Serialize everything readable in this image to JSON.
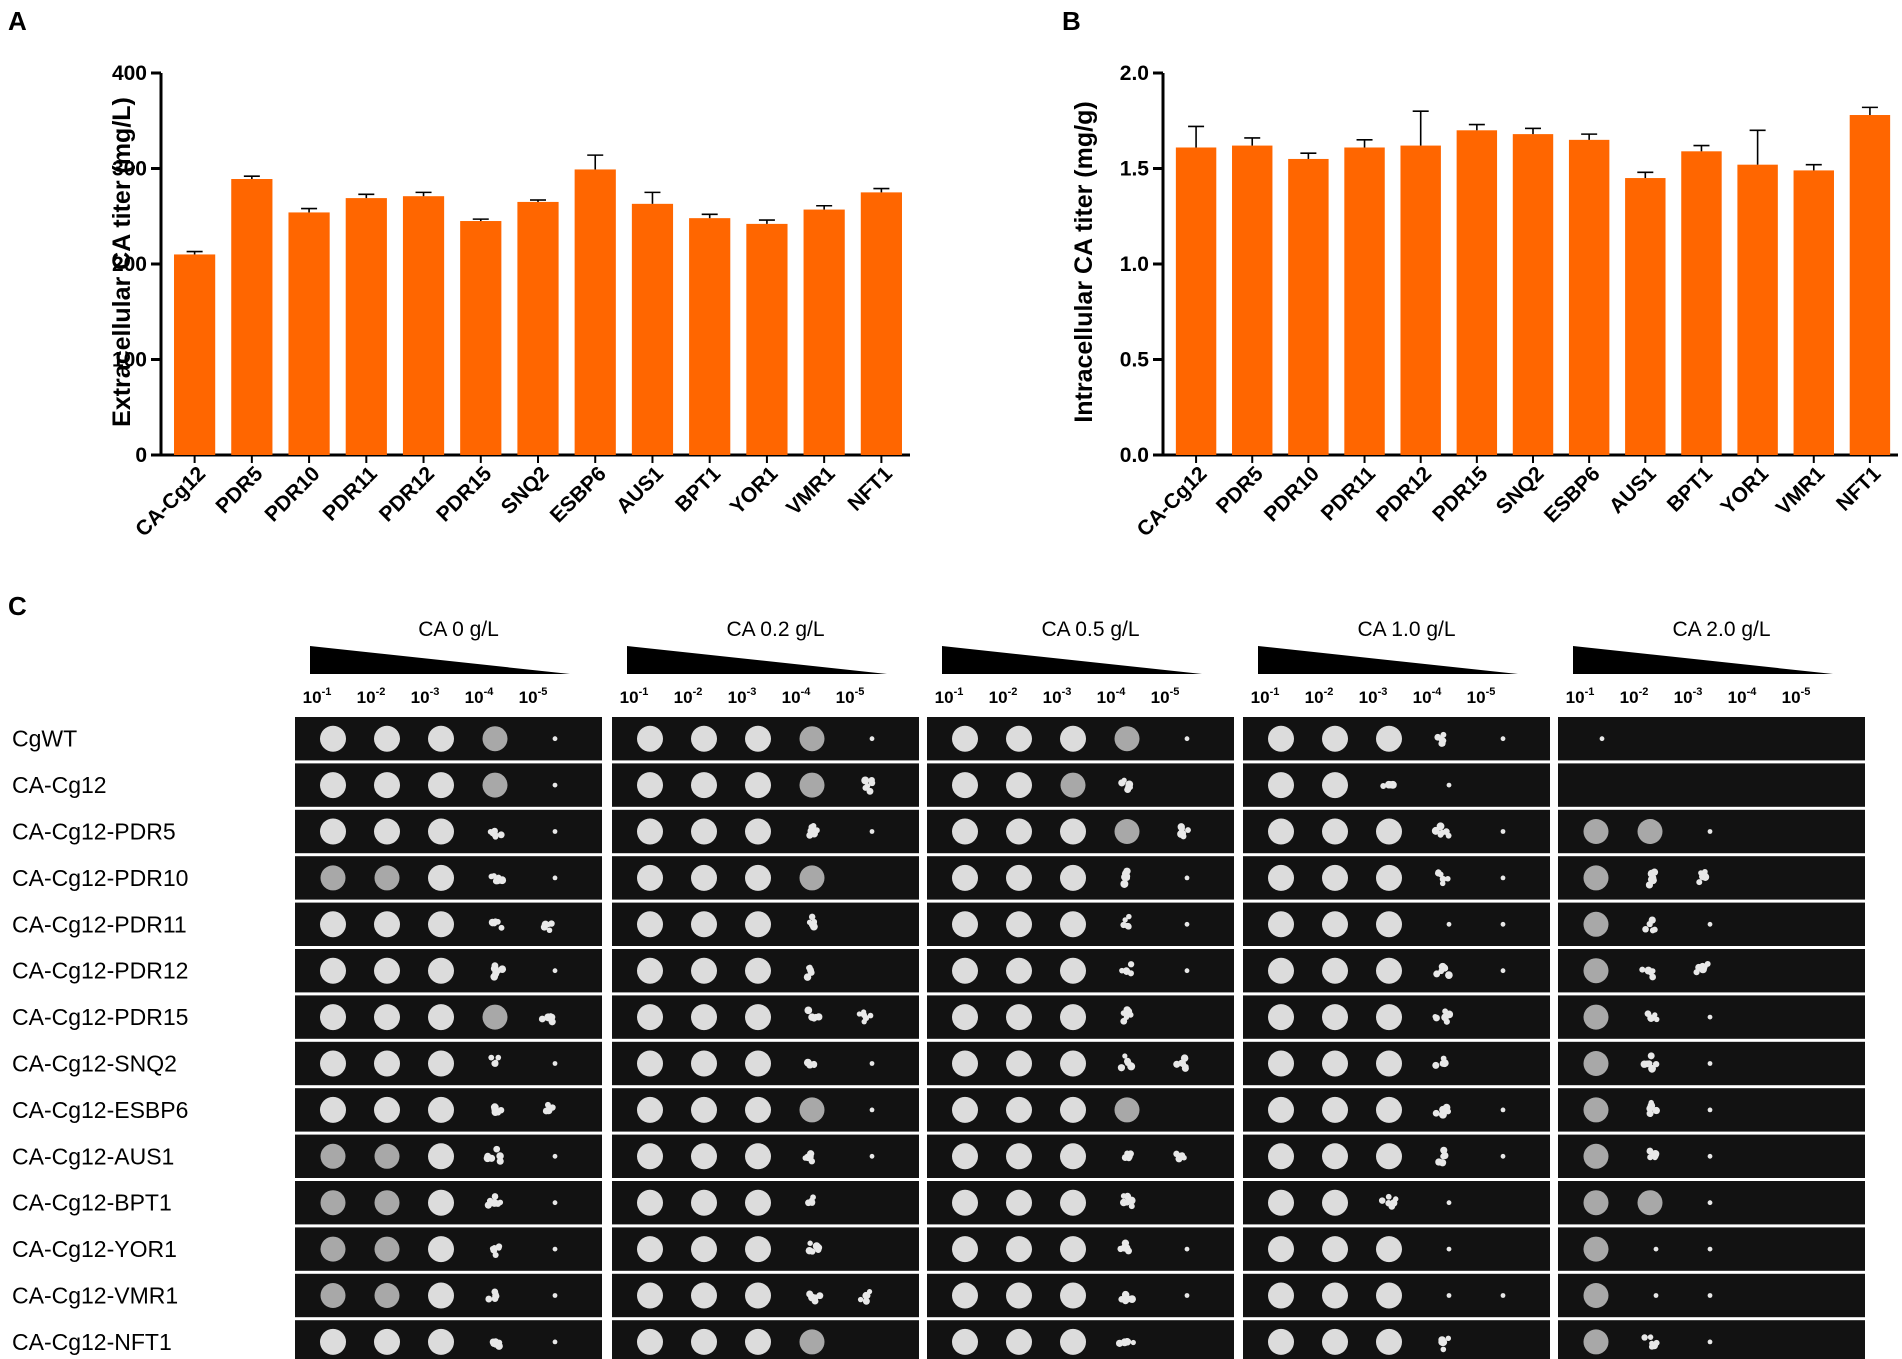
{
  "panel_labels": {
    "a": "A",
    "b": "B",
    "c": "C"
  },
  "colors": {
    "bar": "#FF6600",
    "axis": "#000000",
    "plate": "#121212",
    "colony": "#e8e8e8"
  },
  "chart_data": [
    {
      "type": "bar",
      "panel": "A",
      "title": "",
      "xlabel": "",
      "ylabel": "Extracellular CA titer (mg/L)",
      "ylim": [
        0,
        400
      ],
      "yticks": [
        0,
        100,
        200,
        300,
        400
      ],
      "ytick_labels": [
        "0",
        "100",
        "200",
        "300",
        "400"
      ],
      "categories": [
        "CA-Cg12",
        "PDR5",
        "PDR10",
        "PDR11",
        "PDR12",
        "PDR15",
        "SNQ2",
        "ESBP6",
        "AUS1",
        "BPT1",
        "YOR1",
        "VMR1",
        "NFT1"
      ],
      "values": [
        210,
        289,
        254,
        269,
        271,
        245,
        265,
        299,
        263,
        248,
        242,
        257,
        275
      ],
      "errors": [
        3,
        3,
        4,
        4,
        4,
        2,
        2,
        15,
        12,
        4,
        4,
        4,
        4
      ]
    },
    {
      "type": "bar",
      "panel": "B",
      "title": "",
      "xlabel": "",
      "ylabel": "Intracellular CA titer (mg/g)",
      "ylim": [
        0,
        2.0
      ],
      "yticks": [
        0,
        0.5,
        1.0,
        1.5,
        2.0
      ],
      "ytick_labels": [
        "0.0",
        "0.5",
        "1.0",
        "1.5",
        "2.0"
      ],
      "categories": [
        "CA-Cg12",
        "PDR5",
        "PDR10",
        "PDR11",
        "PDR12",
        "PDR15",
        "SNQ2",
        "ESBP6",
        "AUS1",
        "BPT1",
        "YOR1",
        "VMR1",
        "NFT1"
      ],
      "values": [
        1.61,
        1.62,
        1.55,
        1.61,
        1.62,
        1.7,
        1.68,
        1.65,
        1.45,
        1.59,
        1.52,
        1.49,
        1.78
      ],
      "errors": [
        0.11,
        0.04,
        0.03,
        0.04,
        0.18,
        0.03,
        0.03,
        0.03,
        0.03,
        0.03,
        0.18,
        0.03,
        0.04
      ]
    }
  ],
  "spot_assay": {
    "conditions": [
      "CA 0 g/L",
      "CA 0.2 g/L",
      "CA 0.5 g/L",
      "CA 1.0 g/L",
      "CA 2.0 g/L"
    ],
    "dilution_base": "10",
    "dilution_exponents": [
      "-1",
      "-2",
      "-3",
      "-4",
      "-5"
    ],
    "strains": [
      "CgWT",
      "CA-Cg12",
      "CA-Cg12-PDR5",
      "CA-Cg12-PDR10",
      "CA-Cg12-PDR11",
      "CA-Cg12-PDR12",
      "CA-Cg12-PDR15",
      "CA-Cg12-SNQ2",
      "CA-Cg12-ESBP6",
      "CA-Cg12-AUS1",
      "CA-Cg12-BPT1",
      "CA-Cg12-YOR1",
      "CA-Cg12-VMR1",
      "CA-Cg12-NFT1"
    ],
    "growth_levels": [
      [
        [
          4,
          4,
          4,
          3,
          1
        ],
        [
          4,
          4,
          4,
          3,
          1
        ],
        [
          4,
          4,
          4,
          3,
          1
        ],
        [
          4,
          4,
          4,
          2,
          1
        ],
        [
          1,
          0,
          0,
          0,
          0
        ]
      ],
      [
        [
          4,
          4,
          4,
          3,
          1
        ],
        [
          4,
          4,
          4,
          3,
          2
        ],
        [
          4,
          4,
          3,
          2,
          0
        ],
        [
          4,
          4,
          2,
          1,
          0
        ],
        [
          0,
          0,
          0,
          0,
          0
        ]
      ],
      [
        [
          4,
          4,
          4,
          2,
          1
        ],
        [
          4,
          4,
          4,
          2,
          1
        ],
        [
          4,
          4,
          4,
          3,
          2
        ],
        [
          4,
          4,
          4,
          2,
          1
        ],
        [
          3,
          3,
          1,
          0,
          0
        ]
      ],
      [
        [
          3,
          3,
          4,
          2,
          1
        ],
        [
          4,
          4,
          4,
          3,
          0
        ],
        [
          4,
          4,
          4,
          2,
          1
        ],
        [
          4,
          4,
          4,
          2,
          1
        ],
        [
          3,
          2,
          2,
          0,
          0
        ]
      ],
      [
        [
          4,
          4,
          4,
          2,
          2
        ],
        [
          4,
          4,
          4,
          2,
          0
        ],
        [
          4,
          4,
          4,
          2,
          1
        ],
        [
          4,
          4,
          4,
          1,
          1
        ],
        [
          3,
          2,
          1,
          0,
          0
        ]
      ],
      [
        [
          4,
          4,
          4,
          2,
          1
        ],
        [
          4,
          4,
          4,
          2,
          0
        ],
        [
          4,
          4,
          4,
          2,
          1
        ],
        [
          4,
          4,
          4,
          2,
          1
        ],
        [
          3,
          2,
          2,
          0,
          0
        ]
      ],
      [
        [
          4,
          4,
          4,
          3,
          2
        ],
        [
          4,
          4,
          4,
          2,
          2
        ],
        [
          4,
          4,
          4,
          2,
          0
        ],
        [
          4,
          4,
          4,
          2,
          0
        ],
        [
          3,
          2,
          1,
          0,
          0
        ]
      ],
      [
        [
          4,
          4,
          4,
          2,
          1
        ],
        [
          4,
          4,
          4,
          2,
          1
        ],
        [
          4,
          4,
          4,
          2,
          2
        ],
        [
          4,
          4,
          4,
          2,
          0
        ],
        [
          3,
          2,
          1,
          0,
          0
        ]
      ],
      [
        [
          4,
          4,
          4,
          2,
          2
        ],
        [
          4,
          4,
          4,
          3,
          1
        ],
        [
          4,
          4,
          4,
          3,
          0
        ],
        [
          4,
          4,
          4,
          2,
          1
        ],
        [
          3,
          2,
          1,
          0,
          0
        ]
      ],
      [
        [
          3,
          3,
          4,
          2,
          1
        ],
        [
          4,
          4,
          4,
          2,
          1
        ],
        [
          4,
          4,
          4,
          2,
          2
        ],
        [
          4,
          4,
          4,
          2,
          1
        ],
        [
          3,
          2,
          1,
          0,
          0
        ]
      ],
      [
        [
          3,
          3,
          4,
          2,
          1
        ],
        [
          4,
          4,
          4,
          2,
          0
        ],
        [
          4,
          4,
          4,
          2,
          0
        ],
        [
          4,
          4,
          2,
          1,
          0
        ],
        [
          3,
          3,
          1,
          0,
          0
        ]
      ],
      [
        [
          3,
          3,
          4,
          2,
          1
        ],
        [
          4,
          4,
          4,
          2,
          0
        ],
        [
          4,
          4,
          4,
          2,
          1
        ],
        [
          4,
          4,
          4,
          1,
          0
        ],
        [
          3,
          1,
          1,
          0,
          0
        ]
      ],
      [
        [
          3,
          3,
          4,
          2,
          1
        ],
        [
          4,
          4,
          4,
          2,
          2
        ],
        [
          4,
          4,
          4,
          2,
          1
        ],
        [
          4,
          4,
          4,
          1,
          1
        ],
        [
          3,
          1,
          1,
          0,
          0
        ]
      ],
      [
        [
          4,
          4,
          4,
          2,
          1
        ],
        [
          4,
          4,
          4,
          3,
          0
        ],
        [
          4,
          4,
          4,
          2,
          0
        ],
        [
          4,
          4,
          4,
          2,
          0
        ],
        [
          3,
          2,
          1,
          0,
          0
        ]
      ]
    ]
  }
}
